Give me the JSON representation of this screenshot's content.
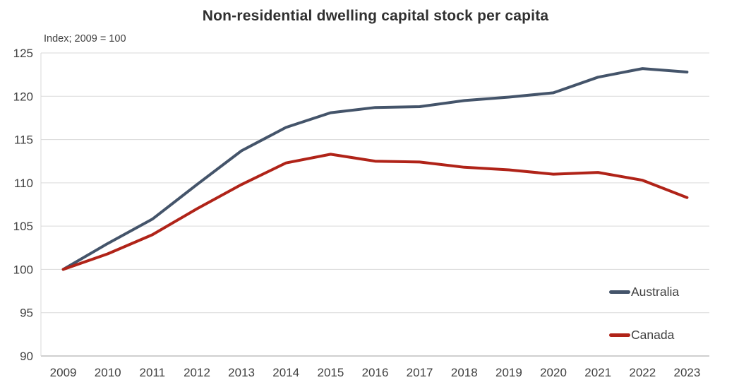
{
  "chart": {
    "title": "Non-residential dwelling capital stock per capita",
    "subtitle": "Index; 2009 = 100"
  },
  "chart_data": {
    "type": "line",
    "title": "Non-residential dwelling capital stock per capita",
    "subtitle": "Index; 2009 = 100",
    "xlabel": "",
    "ylabel": "Index; 2009 = 100",
    "categories": [
      "2009",
      "2010",
      "2011",
      "2012",
      "2013",
      "2014",
      "2015",
      "2016",
      "2017",
      "2018",
      "2019",
      "2020",
      "2021",
      "2022",
      "2023"
    ],
    "series": [
      {
        "name": "Australia",
        "color": "#44546A",
        "values": [
          100,
          103.0,
          105.8,
          109.8,
          113.7,
          116.4,
          118.1,
          118.7,
          118.8,
          119.5,
          119.9,
          120.4,
          122.2,
          123.2,
          122.8
        ]
      },
      {
        "name": "Canada",
        "color": "#B02318",
        "values": [
          100,
          101.8,
          104.0,
          107.0,
          109.8,
          112.3,
          113.3,
          112.5,
          112.4,
          111.8,
          111.5,
          111.0,
          111.2,
          110.3,
          108.3
        ]
      }
    ],
    "ylim": [
      90,
      125
    ],
    "ytick_step": 5,
    "grid": true,
    "legend_position": "inside-right",
    "colors": {
      "gridline": "#D9D9D9",
      "baseline": "#BFBFBF",
      "tick_label": "#404040",
      "title": "#303030"
    }
  }
}
